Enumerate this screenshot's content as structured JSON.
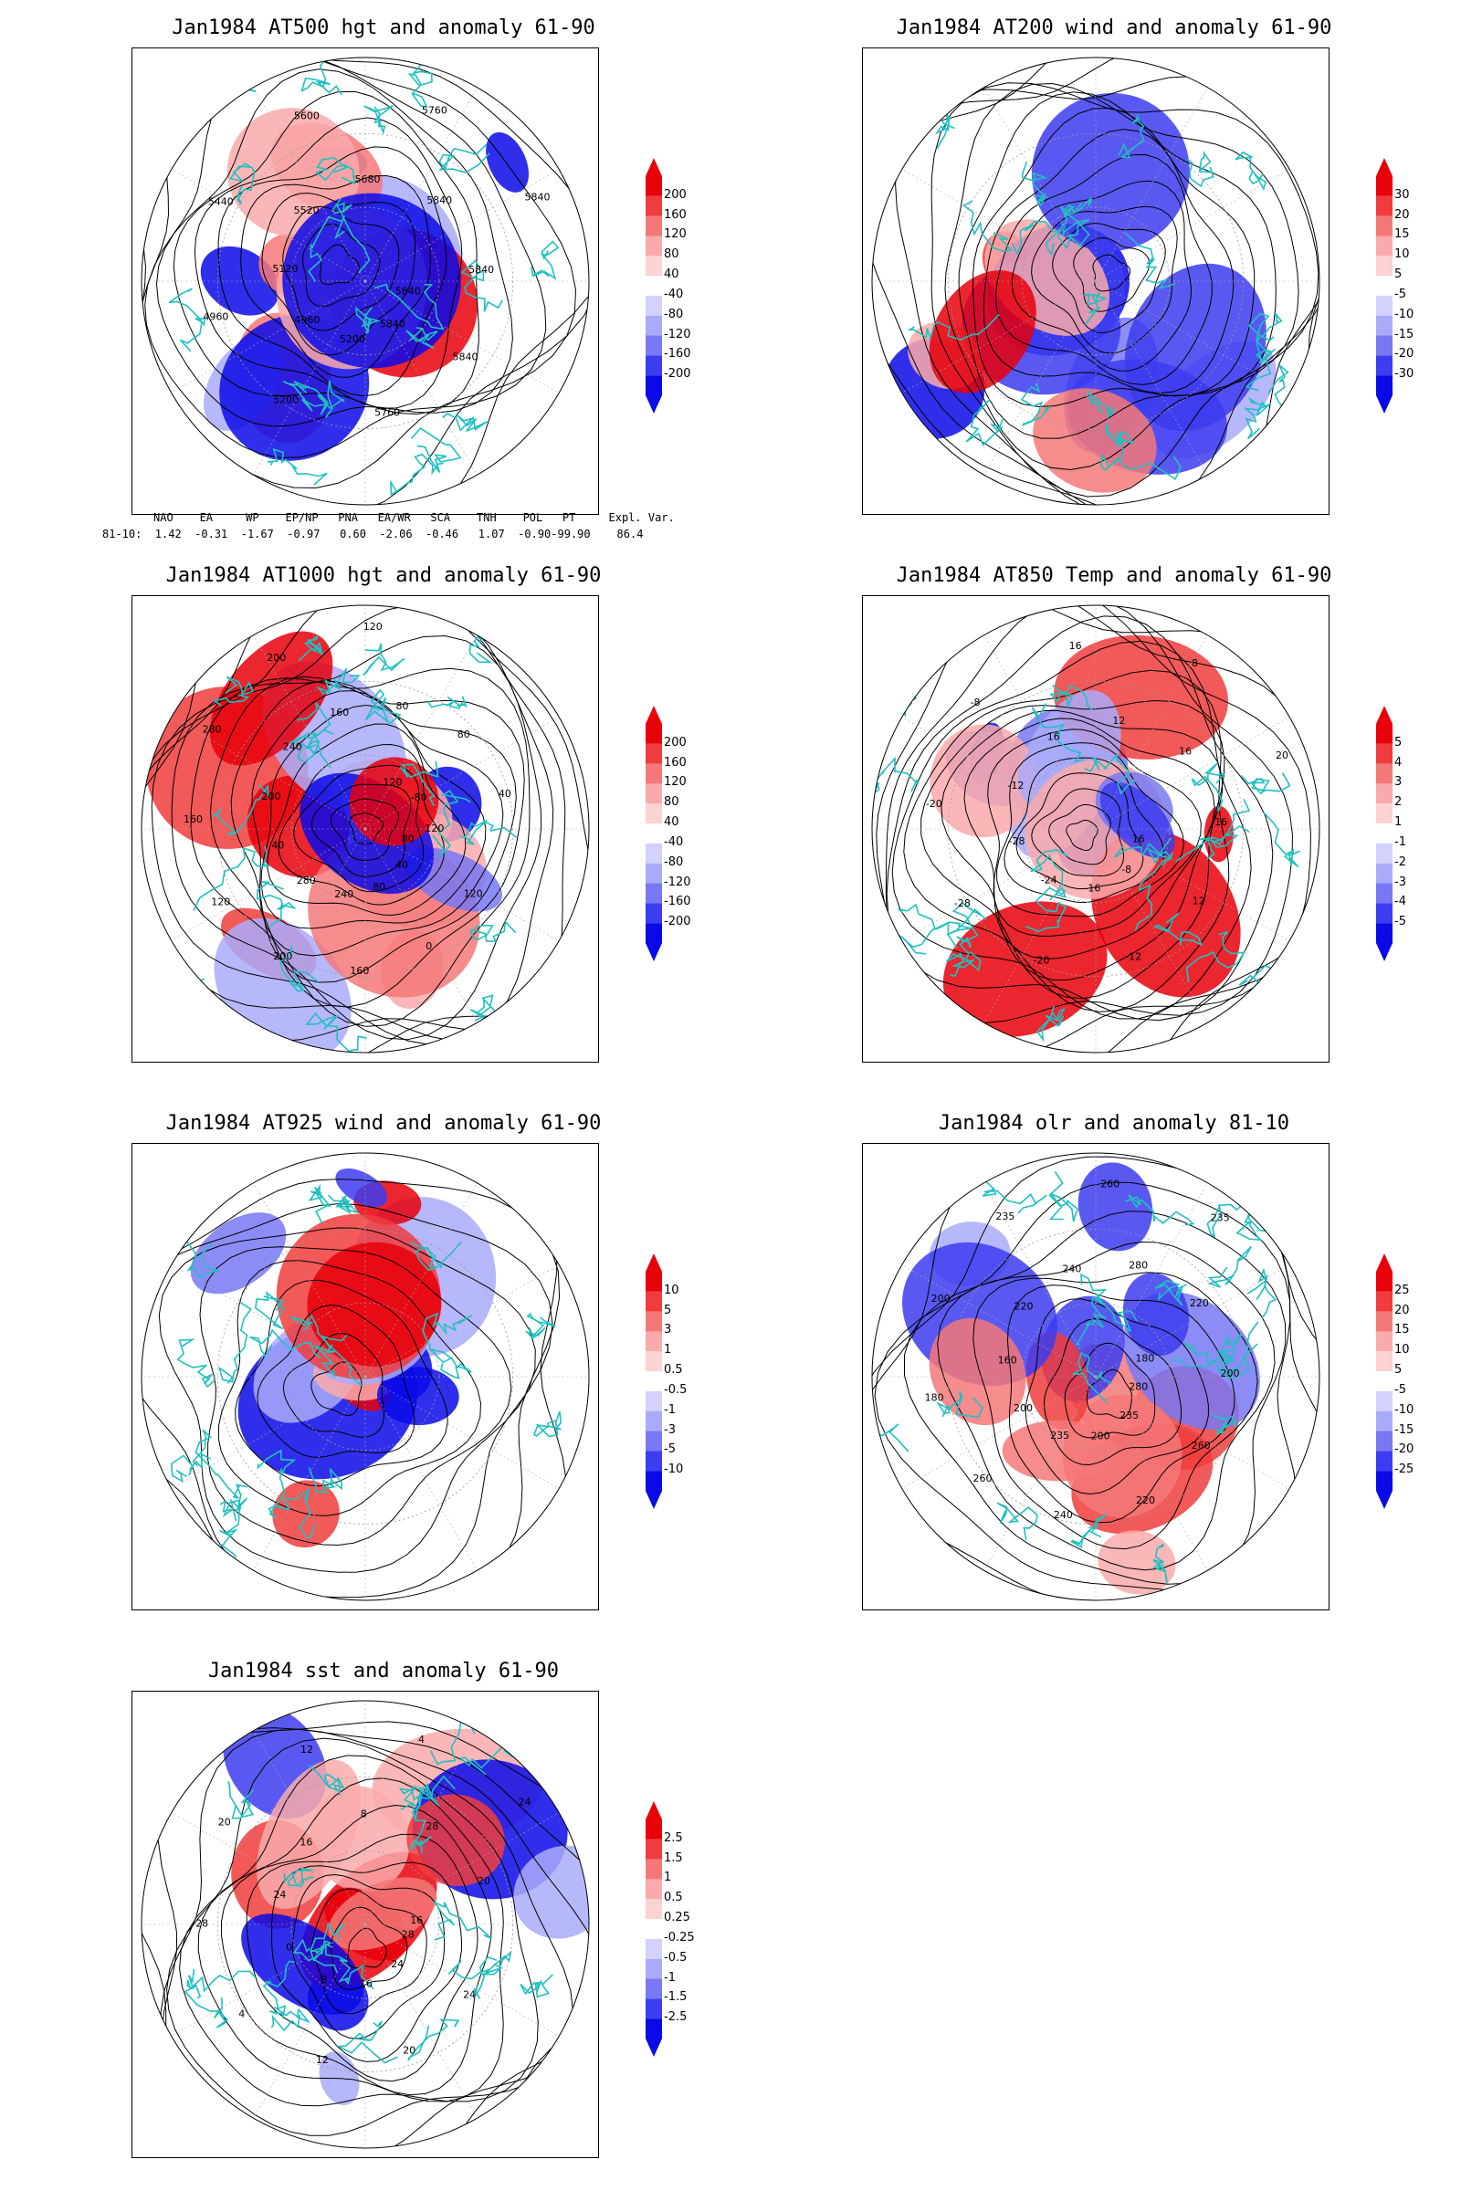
{
  "panels": [
    {
      "id": "p1",
      "title": "Jan1984 AT500 hgt and anomaly 61-90",
      "scale": "hgt500",
      "labels": [
        "5840",
        "5840",
        "5840",
        "5760",
        "5200",
        "5200",
        "4960",
        "4960",
        "5120",
        "5440",
        "5520",
        "5600",
        "5680",
        "5760",
        "5840",
        "5840",
        "5840"
      ]
    },
    {
      "id": "p2",
      "title": "Jan1984 AT200 wind and anomaly 61-90",
      "scale": "wind200",
      "labels": []
    },
    {
      "id": "p3",
      "title": "Jan1984 AT1000 hgt and anomaly 61-90",
      "scale": "hgt1000",
      "labels": [
        "80",
        "120",
        "40",
        "0",
        "80",
        "160",
        "240",
        "200",
        "280",
        "120",
        "40",
        "160",
        "200",
        "280",
        "240",
        "200",
        "160",
        "120",
        "80",
        "120",
        "80",
        "-80",
        "40",
        "120"
      ]
    },
    {
      "id": "p4",
      "title": "Jan1984 AT850 Temp and anomaly 61-90",
      "scale": "t850",
      "labels": [
        "16",
        "12",
        "-8",
        "-12",
        "-16",
        "-20",
        "-24",
        "-28",
        "-28",
        "-20",
        "-12",
        "-8",
        "16",
        "16",
        "12",
        "8",
        "16",
        "20",
        "16"
      ]
    },
    {
      "id": "p5",
      "title": "Jan1984 AT925 wind and anomaly 61-90",
      "scale": "wind925",
      "labels": []
    },
    {
      "id": "p6",
      "title": "Jan1984 olr and anomaly 81-10",
      "scale": "olr",
      "labels": [
        "280",
        "260",
        "235",
        "220",
        "200",
        "240",
        "235",
        "260",
        "200",
        "180",
        "160",
        "200",
        "220",
        "235",
        "240",
        "260",
        "280",
        "235",
        "220",
        "180",
        "200"
      ]
    },
    {
      "id": "p7",
      "title": "Jan1984 sst and anomaly 61-90",
      "scale": "sst",
      "labels": [
        "28",
        "24",
        "24",
        "20",
        "16",
        "12",
        "8",
        "4",
        "0",
        "28",
        "24",
        "20",
        "16",
        "12",
        "8",
        "4",
        "28",
        "24",
        "20",
        "16"
      ]
    }
  ],
  "scales": {
    "hgt500": [
      "200",
      "160",
      "120",
      "80",
      "40",
      "-40",
      "-80",
      "-120",
      "-160",
      "-200"
    ],
    "wind200": [
      "30",
      "20",
      "15",
      "10",
      "5",
      "-5",
      "-10",
      "-15",
      "-20",
      "-30"
    ],
    "hgt1000": [
      "200",
      "160",
      "120",
      "80",
      "40",
      "-40",
      "-80",
      "-120",
      "-160",
      "-200"
    ],
    "t850": [
      "5",
      "4",
      "3",
      "2",
      "1",
      "-1",
      "-2",
      "-3",
      "-4",
      "-5"
    ],
    "wind925": [
      "10",
      "5",
      "3",
      "1",
      "0.5",
      "-0.5",
      "-1",
      "-3",
      "-5",
      "-10"
    ],
    "olr": [
      "25",
      "20",
      "15",
      "10",
      "5",
      "-5",
      "-10",
      "-15",
      "-20",
      "-25"
    ],
    "sst": [
      "2.5",
      "1.5",
      "1",
      "0.5",
      "0.25",
      "-0.25",
      "-0.5",
      "-1",
      "-1.5",
      "-2.5"
    ]
  },
  "indices": {
    "header": "NAO    EA     WP    EP/NP   PNA   EA/WR   SCA    TNH    POL   PT     Expl. Var.",
    "row": "81-10:  1.42  -0.31  -1.67  -0.97   0.60  -2.06  -0.46   1.07  -0.90-99.90    86.4"
  },
  "colors": {
    "coast": "#20c0c0",
    "contour": "#000000",
    "ramp": [
      "#e8000a",
      "#f03c3c",
      "#f57878",
      "#faaaaa",
      "#fdd2d2",
      "#ffffff",
      "#d2d2fd",
      "#aaaafa",
      "#7878f5",
      "#3c3cf0",
      "#0a0ae8"
    ]
  }
}
